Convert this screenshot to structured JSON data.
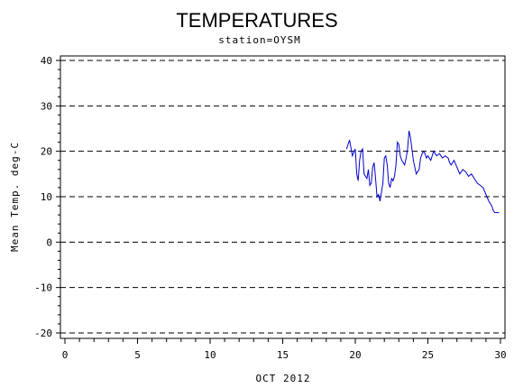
{
  "chart_data": {
    "type": "line",
    "title": "TEMPERATURES",
    "subtitle": "station=OYSM",
    "xlabel": "OCT 2012",
    "ylabel": "Mean Temp. deg-C",
    "xlim": [
      0,
      30
    ],
    "ylim": [
      -20,
      40
    ],
    "x_ticks": [
      0,
      5,
      10,
      15,
      20,
      25,
      30
    ],
    "y_ticks": [
      -20,
      -10,
      0,
      10,
      20,
      30,
      40
    ],
    "y_tick_labels": [
      "-20",
      "-10",
      "0",
      "10",
      "20",
      "30",
      "40"
    ],
    "grid": "horizontal dashed",
    "series": [
      {
        "color": "#0000cc",
        "x": [
          19.4,
          19.6,
          19.8,
          20.0,
          20.1,
          20.2,
          20.3,
          20.4,
          20.5,
          20.6,
          20.8,
          20.9,
          21.0,
          21.1,
          21.2,
          21.3,
          21.4,
          21.5,
          21.6,
          21.7,
          21.8,
          21.9,
          22.0,
          22.1,
          22.2,
          22.3,
          22.4,
          22.5,
          22.6,
          22.7,
          22.8,
          22.9,
          23.0,
          23.1,
          23.2,
          23.3,
          23.4,
          23.5,
          23.6,
          23.7,
          23.8,
          24.0,
          24.2,
          24.4,
          24.5,
          24.6,
          24.7,
          24.8,
          24.9,
          25.0,
          25.1,
          25.2,
          25.4,
          25.6,
          25.8,
          26.0,
          26.2,
          26.4,
          26.5,
          26.6,
          26.8,
          27.0,
          27.2,
          27.4,
          27.6,
          27.8,
          28.0,
          28.2,
          28.4,
          28.6,
          28.8,
          29.0,
          29.2,
          29.4,
          29.5,
          29.6,
          29.7,
          29.8,
          29.9
        ],
        "y": [
          20.5,
          22.5,
          19.0,
          20.5,
          15.0,
          13.5,
          18.0,
          20.0,
          20.5,
          15.0,
          14.0,
          16.0,
          12.5,
          13.0,
          16.5,
          17.5,
          14.0,
          10.0,
          10.5,
          9.0,
          11.0,
          13.0,
          18.5,
          19.0,
          17.0,
          13.0,
          12.0,
          14.0,
          13.5,
          14.5,
          17.0,
          22.0,
          21.5,
          19.0,
          18.0,
          17.5,
          17.0,
          18.5,
          20.5,
          24.5,
          23.0,
          18.0,
          15.0,
          16.0,
          18.5,
          19.5,
          20.0,
          19.5,
          18.5,
          19.0,
          18.5,
          18.0,
          20.0,
          19.0,
          19.5,
          18.5,
          19.0,
          18.5,
          17.5,
          17.0,
          18.0,
          16.5,
          15.0,
          16.0,
          15.5,
          14.5,
          15.0,
          14.0,
          13.0,
          12.5,
          12.0,
          10.5,
          9.0,
          8.0,
          7.0,
          6.5,
          6.5,
          6.5,
          6.5
        ]
      }
    ]
  }
}
